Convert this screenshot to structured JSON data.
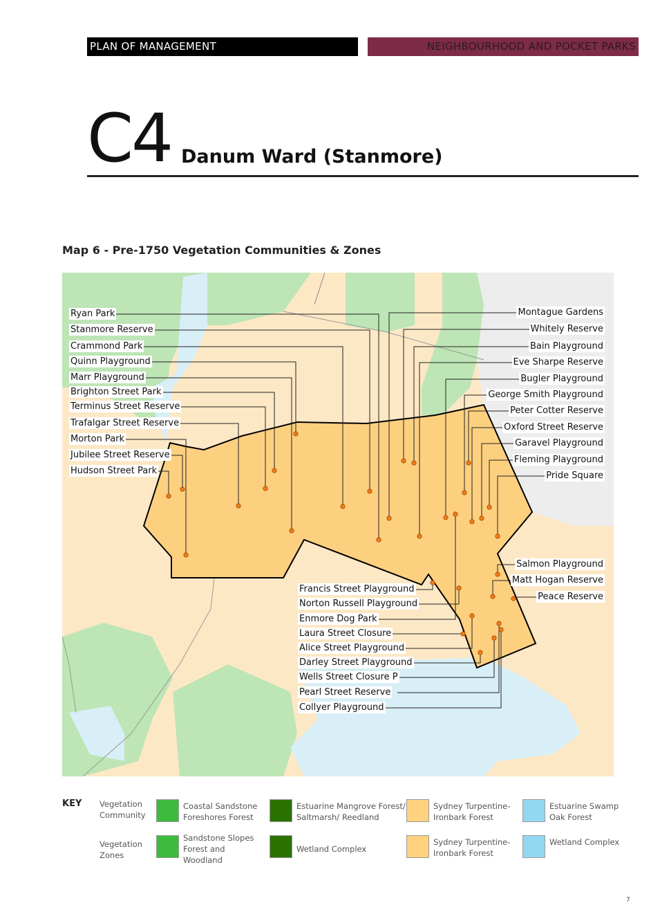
{
  "header": {
    "left": "PLAN OF MANAGEMENT",
    "right": "NEIGHBOURHOOD AND POCKET PARKS",
    "right_color": "#7d2b47"
  },
  "section": {
    "code": "C4",
    "title": "Danum Ward (Stanmore)"
  },
  "map": {
    "title": "Map 6 - Pre-1750 Vegetation Communities & Zones",
    "colors": {
      "ward_fill": "#fdd080",
      "ward_outline": "#000000",
      "point": "#f07d18",
      "green": "#bde5b5",
      "water": "#d8eff7",
      "beige": "#fde8c6",
      "urban": "#ededed"
    },
    "left_labels": [
      "Ryan Park",
      "Stanmore Reserve",
      "Crammond Park",
      "Quinn Playground",
      "Marr Playground",
      "Brighton Street Park",
      "Terminus Street Reserve",
      "Trafalgar Street Reserve",
      "Morton Park",
      "Jubilee Street Reserve",
      "Hudson Street Park"
    ],
    "right_labels": [
      "Montague Gardens",
      "Whitely Reserve",
      "Bain Playground",
      "Eve Sharpe Reserve",
      "Bugler Playground",
      "George Smith Playground",
      "Peter Cotter Reserve",
      "Oxford Street Reserve",
      "Garavel Playground",
      "Fleming Playground",
      "Pride Square",
      "Salmon Playground",
      "Matt Hogan Reserve",
      "Peace Reserve"
    ],
    "bottom_labels": [
      "Francis Street Playground",
      "Norton Russell Playground",
      "Enmore Dog Park",
      "Laura Street Closure",
      "Alice Street Playground",
      "Darley Street Playground",
      "Wells Street Closure P",
      "Pearl Street Reserve",
      "Collyer Playground"
    ]
  },
  "key": {
    "title": "KEY",
    "rows": [
      {
        "label": "Vegetation Community",
        "items": [
          {
            "name": "Coastal Sandstone Foreshores Forest",
            "color": "#3dbb3d"
          },
          {
            "name": "Estuarine Mangrove Forest/ Saltmarsh/ Reedland",
            "color": "#2a7200"
          },
          {
            "name": "Sydney Turpentine-Ironbark Forest",
            "color": "#fed27e"
          },
          {
            "name": "Estuarine Swamp Oak Forest",
            "color": "#93d8f1"
          }
        ]
      },
      {
        "label": "Vegetation Zones",
        "items": [
          {
            "name": "Sandstone Slopes Forest and Woodland",
            "color": "#3dbb3d"
          },
          {
            "name": "Wetland Complex",
            "color": "#2a7200"
          },
          {
            "name": "Sydney Turpentine-Ironbark Forest",
            "color": "#fed27e"
          },
          {
            "name": "Wetland Complex",
            "color": "#93d8f1"
          }
        ]
      }
    ]
  },
  "page_number": "7"
}
